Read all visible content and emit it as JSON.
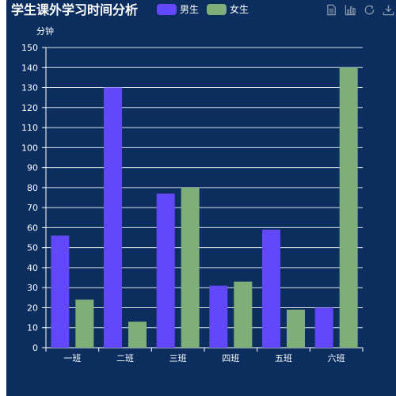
{
  "chart_data": {
    "type": "bar",
    "title": "学生课外学习时间分析",
    "ylabel": "分钟",
    "xlabel": "",
    "categories": [
      "一班",
      "二班",
      "三班",
      "四班",
      "五班",
      "六班"
    ],
    "series": [
      {
        "name": "男生",
        "values": [
          56,
          130,
          77,
          31,
          59,
          20
        ],
        "color": "#6347fa"
      },
      {
        "name": "女生",
        "values": [
          24,
          13,
          80,
          33,
          19,
          140
        ],
        "color": "#7eaf79"
      }
    ],
    "ylim": [
      0,
      150
    ],
    "ytick_step": 10,
    "grid": true,
    "legend_position": "top"
  },
  "colors": {
    "background": "#0b2e5e",
    "axis": "#ffffff",
    "grid": "#ffffff"
  },
  "toolbox": {
    "items": [
      {
        "icon": "data-view-icon"
      },
      {
        "icon": "bar-chart-icon"
      },
      {
        "icon": "refresh-icon"
      },
      {
        "icon": "download-icon"
      }
    ]
  }
}
